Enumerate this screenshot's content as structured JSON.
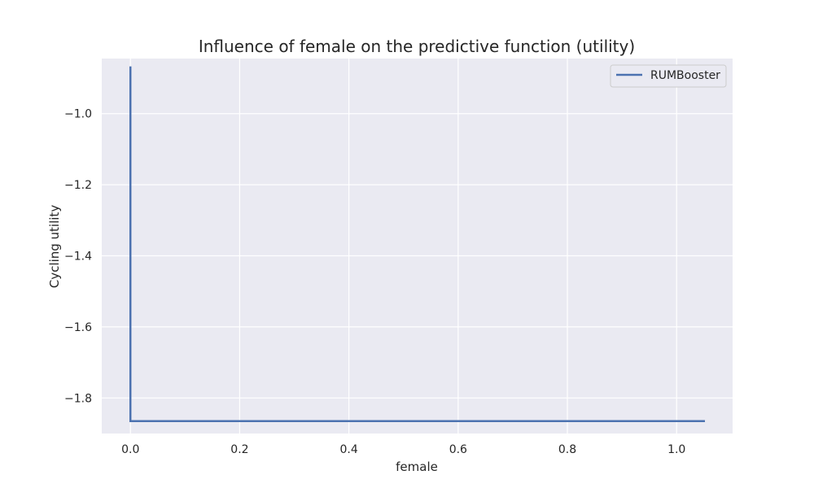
{
  "chart_data": {
    "type": "line",
    "title": "Influence of female on the predictive function (utility)",
    "xlabel": "female",
    "ylabel": "Cycling utility",
    "xlim": [
      -0.0525,
      1.1025
    ],
    "ylim": [
      -1.9,
      -0.845
    ],
    "xticks": [
      0.0,
      0.2,
      0.4,
      0.6,
      0.8,
      1.0
    ],
    "xtick_labels": [
      "0.0",
      "0.2",
      "0.4",
      "0.6",
      "0.8",
      "1.0"
    ],
    "yticks": [
      -1.8,
      -1.6,
      -1.4,
      -1.2,
      -1.0
    ],
    "ytick_labels": [
      "−1.8",
      "−1.6",
      "−1.4",
      "−1.2",
      "−1.0"
    ],
    "grid": true,
    "legend_position": "top-right",
    "series": [
      {
        "name": "RUMBooster",
        "color": "#4c72b0",
        "x": [
          0.0,
          0.0,
          1.05
        ],
        "y": [
          -0.87,
          -1.865,
          -1.865
        ]
      }
    ]
  },
  "colors": {
    "plot_background": "#eaeaf2",
    "grid": "#ffffff",
    "text": "#262626",
    "legend_border": "#cccccc"
  }
}
